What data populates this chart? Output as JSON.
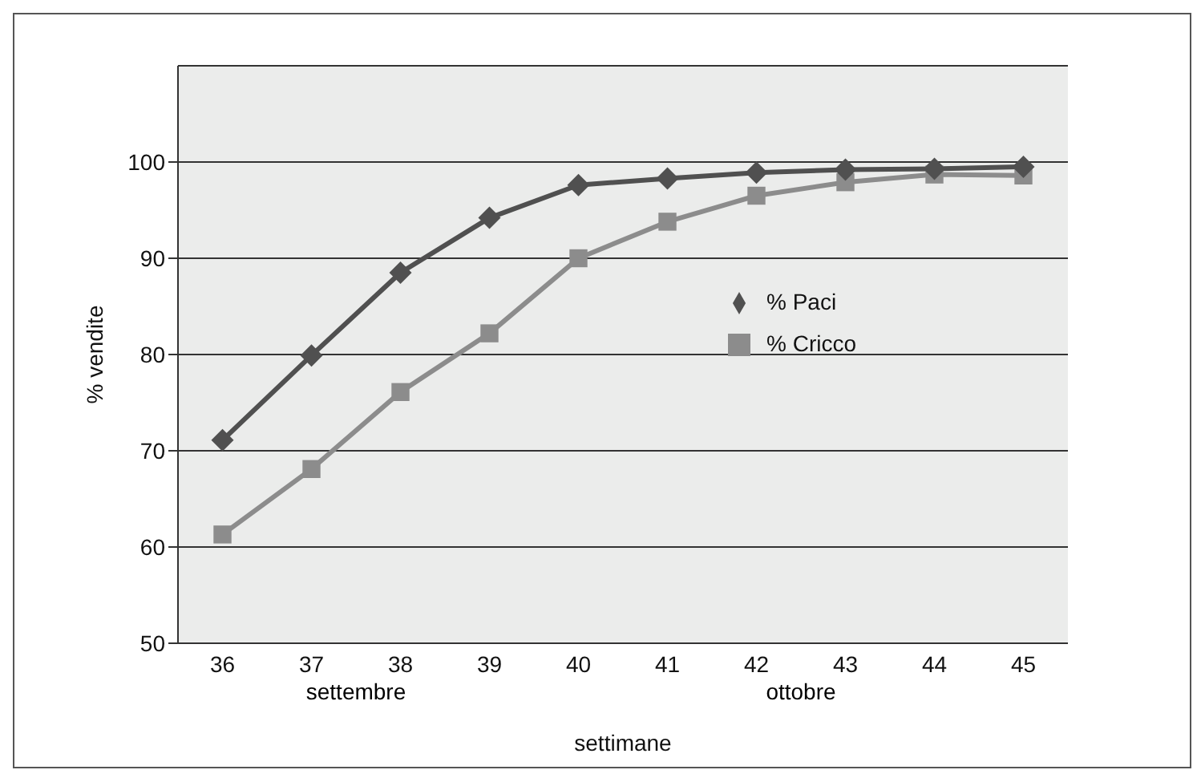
{
  "chart_data": {
    "type": "line",
    "xlabel": "settimane",
    "ylabel": "% vendite",
    "categories": [
      "36",
      "37",
      "38",
      "39",
      "40",
      "41",
      "42",
      "43",
      "44",
      "45"
    ],
    "series": [
      {
        "name": "% Paci",
        "color": "#505050",
        "marker": "diamond",
        "values": [
          71.1,
          79.9,
          88.5,
          94.2,
          97.6,
          98.3,
          98.9,
          99.2,
          99.3,
          99.5
        ]
      },
      {
        "name": "% Cricco",
        "color": "#8c8c8c",
        "marker": "square",
        "values": [
          61.3,
          68.1,
          76.1,
          82.2,
          90.0,
          93.8,
          96.5,
          97.9,
          98.7,
          98.6
        ]
      }
    ],
    "ylim": [
      50,
      110
    ],
    "yticks": [
      50,
      60,
      70,
      80,
      90,
      100
    ],
    "grid": "y",
    "legend": "right",
    "line_style": "solid",
    "annotations": [
      "settembre",
      "ottobre"
    ]
  }
}
